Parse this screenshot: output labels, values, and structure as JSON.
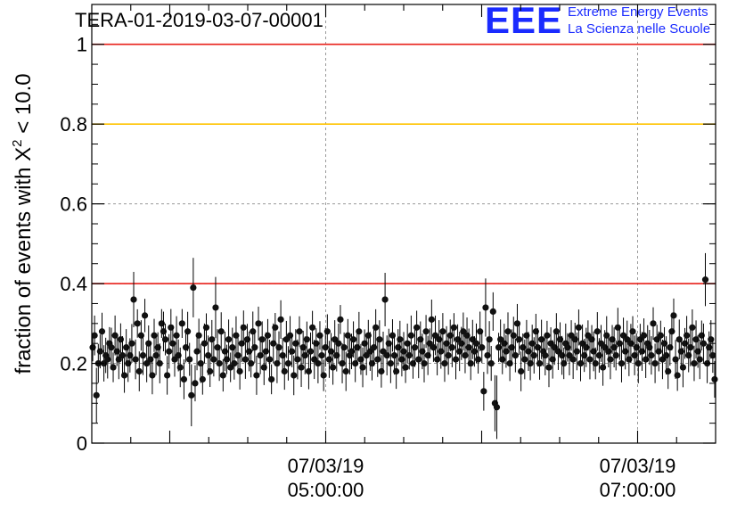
{
  "header": {
    "title": "TERA-01-2019-03-07-00001",
    "logo_letters": "EEE",
    "logo_line1": "Extreme Energy Events",
    "logo_line2": "La Scienza nelle Scuole"
  },
  "colors": {
    "red_line": "#e8201a",
    "yellow_line": "#ffc300",
    "points": "#111111",
    "logo": "#1a2bff"
  },
  "chart_data": {
    "type": "scatter",
    "title": "TERA-01-2019-03-07-00001",
    "ylabel": "fraction of events with X² < 10.0",
    "ylabel_parts": {
      "prefix": "fraction of events with X",
      "sup": "2",
      "suffix": " < 10.0"
    },
    "ylim": [
      0,
      1.1
    ],
    "xlim": [
      "2019-03-07T03:30:00",
      "2019-03-07T07:30:00"
    ],
    "yticks": [
      0,
      0.2,
      0.4,
      0.6,
      0.8,
      1
    ],
    "ytick_labels": [
      "0",
      "0.2",
      "0.4",
      "0.6",
      "0.8",
      "1"
    ],
    "xticks_labeled": [
      {
        "t": "2019-03-07T05:00:00",
        "line1": "07/03/19",
        "line2": "05:00:00"
      },
      {
        "t": "2019-03-07T07:00:00",
        "line1": "07/03/19",
        "line2": "07:00:00"
      }
    ],
    "grid": true,
    "reference_lines": [
      {
        "y": 1.0,
        "color": "red"
      },
      {
        "y": 0.8,
        "color": "yellow"
      },
      {
        "y": 0.4,
        "color": "red"
      }
    ],
    "series": [
      {
        "x_start": "2019-03-07T03:30:00",
        "x_end": "2019-03-07T07:30:00",
        "sampling": "one point every 40 seconds",
        "values": [
          0.24,
          0.27,
          0.12,
          0.2,
          0.23,
          0.28,
          0.2,
          0.22,
          0.21,
          0.25,
          0.24,
          0.19,
          0.27,
          0.23,
          0.21,
          0.26,
          0.22,
          0.17,
          0.24,
          0.2,
          0.22,
          0.25,
          0.36,
          0.21,
          0.3,
          0.18,
          0.27,
          0.22,
          0.32,
          0.2,
          0.25,
          0.21,
          0.17,
          0.27,
          0.22,
          0.24,
          0.2,
          0.3,
          0.28,
          0.26,
          0.17,
          0.23,
          0.29,
          0.25,
          0.21,
          0.27,
          0.22,
          0.19,
          0.3,
          0.16,
          0.24,
          0.28,
          0.21,
          0.12,
          0.39,
          0.15,
          0.23,
          0.27,
          0.2,
          0.16,
          0.25,
          0.29,
          0.22,
          0.18,
          0.26,
          0.21,
          0.34,
          0.24,
          0.2,
          0.28,
          0.17,
          0.23,
          0.21,
          0.26,
          0.19,
          0.24,
          0.2,
          0.27,
          0.22,
          0.18,
          0.25,
          0.29,
          0.21,
          0.26,
          0.23,
          0.2,
          0.28,
          0.24,
          0.17,
          0.3,
          0.22,
          0.26,
          0.19,
          0.23,
          0.27,
          0.21,
          0.16,
          0.25,
          0.29,
          0.2,
          0.24,
          0.31,
          0.22,
          0.18,
          0.26,
          0.2,
          0.27,
          0.23,
          0.17,
          0.25,
          0.21,
          0.28,
          0.19,
          0.24,
          0.22,
          0.26,
          0.18,
          0.23,
          0.29,
          0.21,
          0.25,
          0.2,
          0.27,
          0.22,
          0.17,
          0.24,
          0.28,
          0.21,
          0.23,
          0.19,
          0.26,
          0.22,
          0.25,
          0.31,
          0.2,
          0.24,
          0.18,
          0.27,
          0.22,
          0.23,
          0.26,
          0.2,
          0.24,
          0.28,
          0.21,
          0.19,
          0.25,
          0.22,
          0.27,
          0.23,
          0.2,
          0.24,
          0.29,
          0.21,
          0.26,
          0.18,
          0.23,
          0.36,
          0.22,
          0.25,
          0.2,
          0.27,
          0.22,
          0.18,
          0.24,
          0.26,
          0.21,
          0.23,
          0.19,
          0.25,
          0.22,
          0.27,
          0.2,
          0.24,
          0.29,
          0.21,
          0.26,
          0.23,
          0.2,
          0.28,
          0.22,
          0.25,
          0.31,
          0.24,
          0.27,
          0.21,
          0.26,
          0.23,
          0.28,
          0.2,
          0.25,
          0.22,
          0.27,
          0.24,
          0.29,
          0.21,
          0.26,
          0.23,
          0.25,
          0.28,
          0.22,
          0.27,
          0.24,
          0.2,
          0.26,
          0.23,
          0.25,
          0.21,
          0.28,
          0.24,
          0.13,
          0.34,
          0.22,
          0.26,
          0.2,
          0.33,
          0.1,
          0.09,
          0.24,
          0.26,
          0.21,
          0.25,
          0.23,
          0.28,
          0.2,
          0.24,
          0.27,
          0.22,
          0.3,
          0.26,
          0.18,
          0.24,
          0.21,
          0.27,
          0.23,
          0.2,
          0.25,
          0.22,
          0.28,
          0.24,
          0.2,
          0.26,
          0.23,
          0.22,
          0.27,
          0.19,
          0.25,
          0.21,
          0.24,
          0.28,
          0.23,
          0.26,
          0.22,
          0.2,
          0.25,
          0.24,
          0.22,
          0.27,
          0.21,
          0.26,
          0.23,
          0.29,
          0.2,
          0.25,
          0.22,
          0.24,
          0.27,
          0.21,
          0.26,
          0.23,
          0.2,
          0.28,
          0.22,
          0.25,
          0.19,
          0.24,
          0.27,
          0.23,
          0.21,
          0.26,
          0.24,
          0.22,
          0.29,
          0.25,
          0.2,
          0.27,
          0.23,
          0.26,
          0.21,
          0.25,
          0.28,
          0.22,
          0.24,
          0.2,
          0.26,
          0.23,
          0.27,
          0.21,
          0.25,
          0.24,
          0.22,
          0.3,
          0.2,
          0.26,
          0.23,
          0.27,
          0.21,
          0.25,
          0.22,
          0.18,
          0.24,
          0.28,
          0.32,
          0.21,
          0.17,
          0.26,
          0.23,
          0.19,
          0.25,
          0.27,
          0.22,
          0.24,
          0.29,
          0.2,
          0.26,
          0.23,
          0.21,
          0.27,
          0.25,
          0.41,
          0.2,
          0.24,
          0.26,
          0.22,
          0.16
        ]
      }
    ]
  }
}
